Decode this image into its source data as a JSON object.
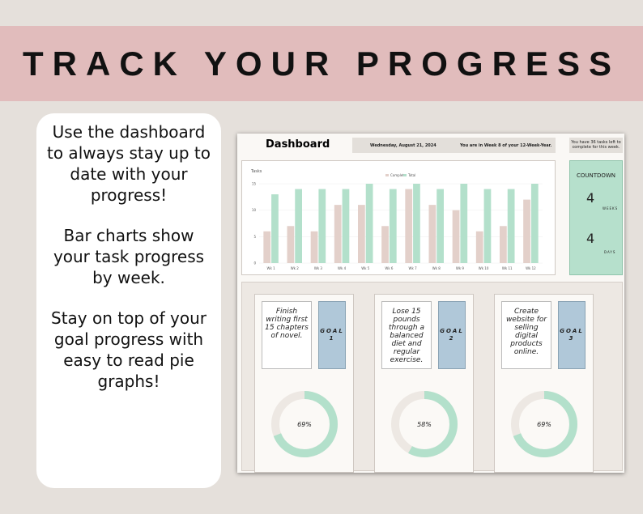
{
  "banner": {
    "title": "TRACK YOUR PROGRESS"
  },
  "sidebar": {
    "paragraphs": [
      "Use the dashboard to always stay up to date with your progress!",
      "Bar charts show your task progress by week.",
      "Stay on top of your goal progress with easy to read pie graphs!"
    ]
  },
  "dashboard": {
    "title": "Dashboard",
    "date": "Wednesday, August 21, 2024",
    "week_status": "You are in Week 8 of your 12-Week-Year.",
    "tasks_left": "You have 36 tasks left to complete for this week.",
    "chart": {
      "type": "bar",
      "title": "Tasks",
      "categories": [
        "Wk 1",
        "Wk 2",
        "Wk 3",
        "Wk 4",
        "Wk 5",
        "Wk 6",
        "Wk 7",
        "Wk 8",
        "Wk 9",
        "Wk 10",
        "Wk 11",
        "Wk 12"
      ],
      "series": [
        {
          "name": "Complete",
          "color": "#e3d0ca",
          "values": [
            6,
            7,
            6,
            11,
            11,
            7,
            14,
            11,
            10,
            6,
            7,
            12
          ]
        },
        {
          "name": "Total",
          "color": "#b3e0cb",
          "values": [
            13,
            14,
            14,
            14,
            15,
            14,
            15,
            14,
            15,
            14,
            14,
            15
          ]
        }
      ],
      "ylim": [
        0,
        15
      ],
      "yticks": [
        0,
        5,
        10,
        15
      ]
    },
    "countdown": {
      "title": "COUNTDOWN",
      "weeks": 4,
      "weeks_label": "WEEKS",
      "days": 4,
      "days_label": "DAYS"
    },
    "goals": [
      {
        "text": "Finish writing first 15 chapters of novel.",
        "label": "GOAL",
        "number": "1",
        "percent": 69,
        "percent_label": "69%"
      },
      {
        "text": "Lose 15 pounds through a balanced diet and regular exercise.",
        "label": "GOAL",
        "number": "2",
        "percent": 58,
        "percent_label": "58%"
      },
      {
        "text": "Create website for selling digital products online.",
        "label": "GOAL",
        "number": "3",
        "percent": 69,
        "percent_label": "69%"
      }
    ]
  }
}
